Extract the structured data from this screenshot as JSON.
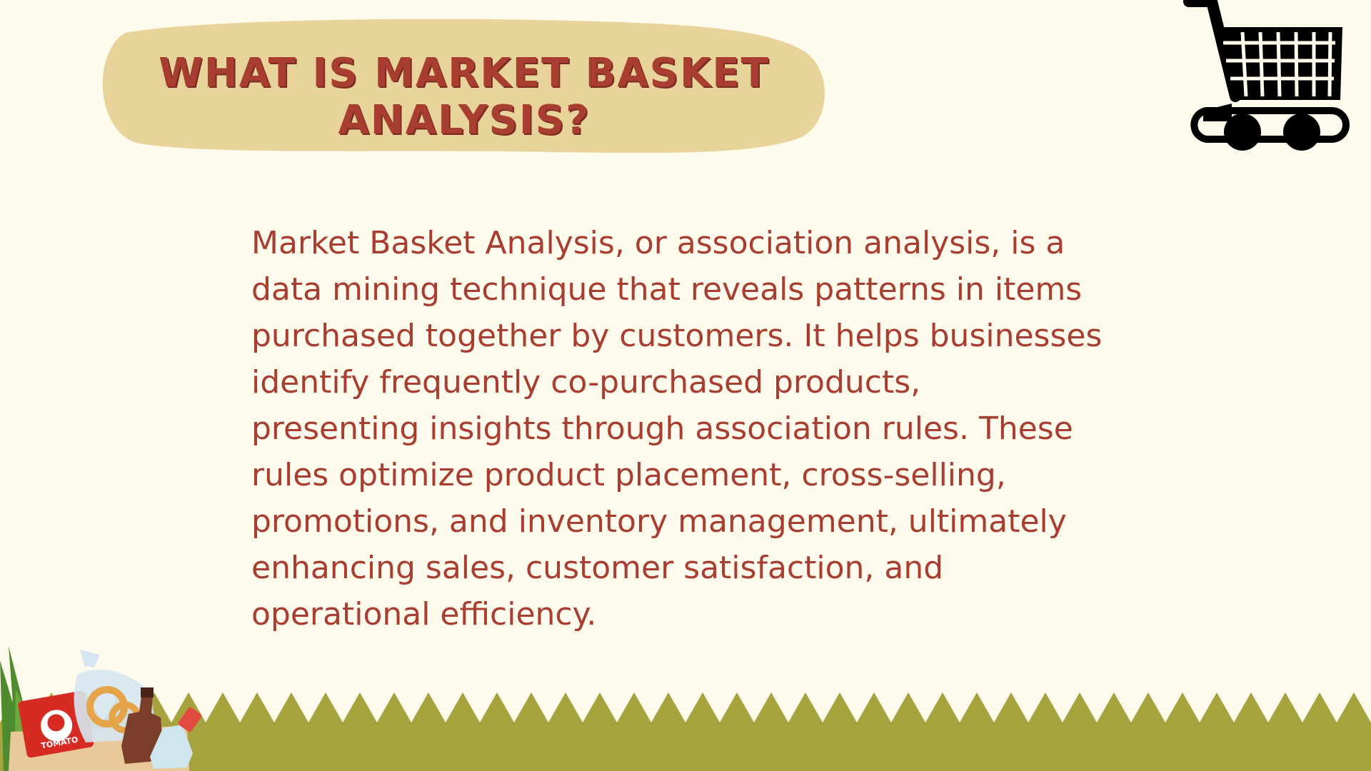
{
  "title": {
    "line1": "WHAT IS MARKET BASKET",
    "line2": "ANALYSIS?"
  },
  "body": {
    "lines": [
      "Market Basket Analysis, or association analysis, is a",
      "data mining technique that reveals patterns in items",
      "purchased together by customers. It helps businesses",
      "identify frequently co-purchased products,",
      "presenting insights through association rules. These",
      "rules optimize product placement, cross-selling,",
      "promotions, and inventory management, ultimately",
      "enhancing sales, customer satisfaction, and",
      "operational efficiency."
    ]
  },
  "illustrations": {
    "cart_icon": "shopping-cart-icon",
    "groceries_icon": "grocery-bag-icon",
    "tomato_label": "TOMATO"
  },
  "colors": {
    "background": "#FEFAEC",
    "title_blob": "#E8D49A",
    "text": "#A83E31",
    "grass": "#A7A43F"
  }
}
